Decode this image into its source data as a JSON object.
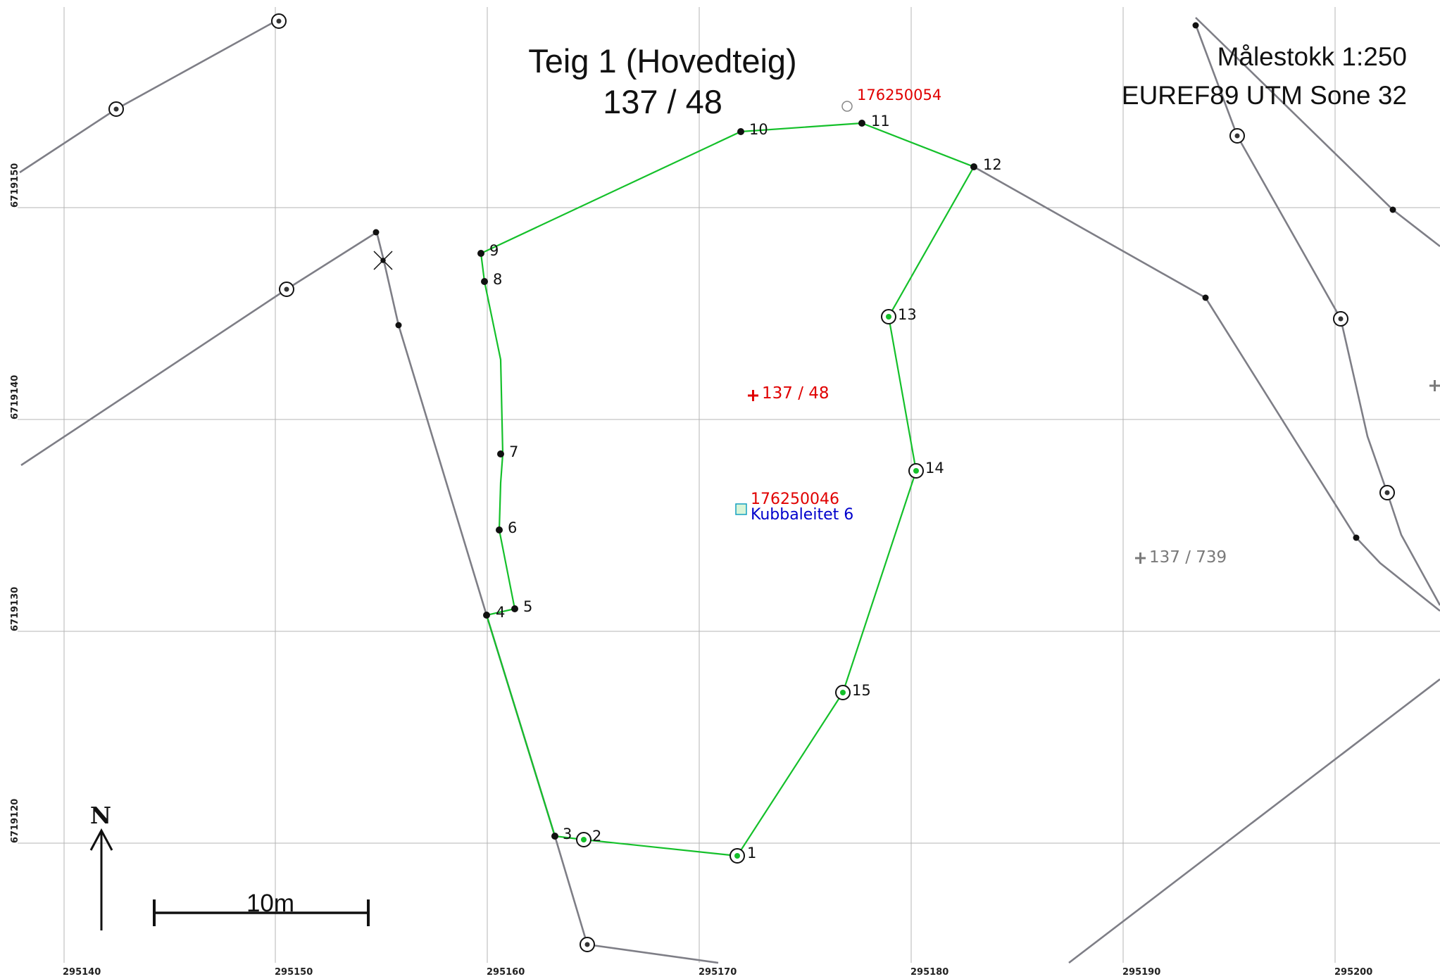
{
  "title": {
    "line1": "Teig 1 (Hovedteig)",
    "line2": "137 / 48"
  },
  "scale_text": "Målestokk 1:250",
  "projection_text": "EUREF89 UTM Sone 32",
  "north_label": "N",
  "scale_bar_label": "10m",
  "axes": {
    "x_ticks": [
      "295140",
      "295150",
      "295160",
      "295170",
      "295180",
      "295190",
      "295200"
    ],
    "y_ticks": [
      "6719150",
      "6719140",
      "6719130",
      "6719120"
    ]
  },
  "boundary_points": [
    "1",
    "2",
    "3",
    "4",
    "5",
    "6",
    "7",
    "8",
    "9",
    "10",
    "11",
    "12",
    "13",
    "14",
    "15"
  ],
  "labels": {
    "parcel_center": "137 / 48",
    "neighbor_parcel": "137 / 739",
    "address_id_top": "176250054",
    "address_id": "176250046",
    "address_name": "Kubbaleitet 6"
  },
  "colors": {
    "boundary": "#14c02a",
    "neighbor_lines": "#7e7e86",
    "grid": "#b4b4b4",
    "red_text": "#e00000",
    "blue_text": "#0000cc"
  }
}
